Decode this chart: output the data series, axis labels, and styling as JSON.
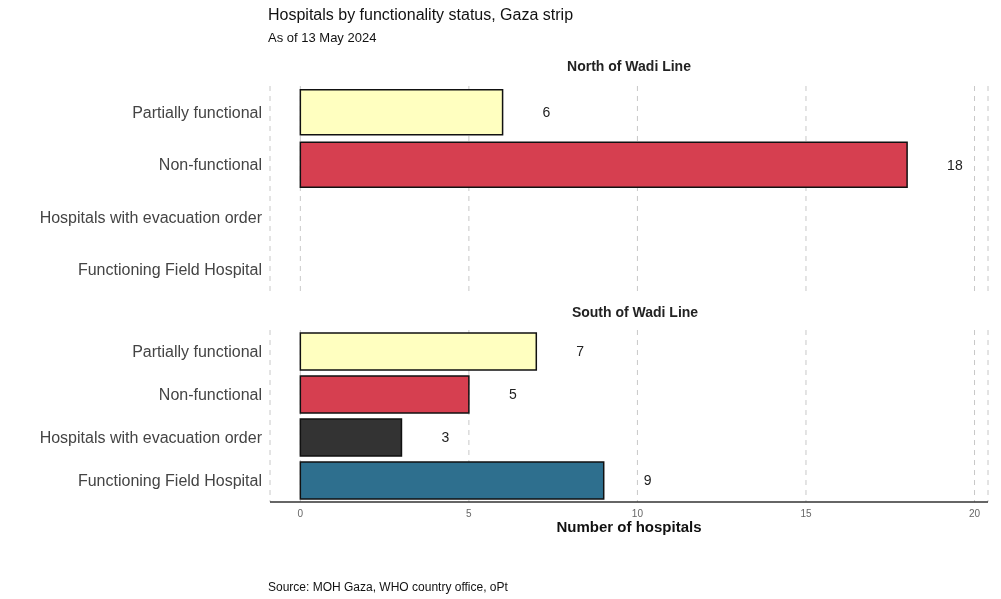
{
  "chart_data": [
    {
      "type": "bar",
      "orientation": "horizontal",
      "title": "Hospitals by functionality status, Gaza strip",
      "subtitle": "As of 13 May 2024",
      "annotations": [
        "North of Wadi Line"
      ],
      "categories": [
        "Partially functional",
        "Non-functional",
        "Hospitals with evacuation order",
        "Functioning Field Hospital"
      ],
      "values": [
        6,
        18,
        null,
        null
      ],
      "colors": [
        "#ffffc0",
        "#d63f50",
        null,
        null
      ],
      "xlim": [
        -0.9,
        20.4
      ],
      "xticks": [
        0,
        5,
        10,
        15,
        20
      ],
      "grid": "x",
      "data_labels": true,
      "tick_labels": "y"
    },
    {
      "type": "bar",
      "orientation": "horizontal",
      "title": "South of Wadi Line",
      "xlabel": "Number of hospitals",
      "annotations": [
        "Source: MOH Gaza, WHO country office, oPt"
      ],
      "categories": [
        "Partially functional",
        "Non-functional",
        "Hospitals with evacuation order",
        "Functioning Field Hospital"
      ],
      "values": [
        7,
        5,
        3,
        9
      ],
      "colors": [
        "#ffffc0",
        "#d63f50",
        "#333333",
        "#2e6f8e"
      ],
      "xlim": [
        -0.9,
        20.4
      ],
      "xticks": [
        0,
        5,
        10,
        15,
        20
      ],
      "grid": "x",
      "data_labels": true
    }
  ]
}
